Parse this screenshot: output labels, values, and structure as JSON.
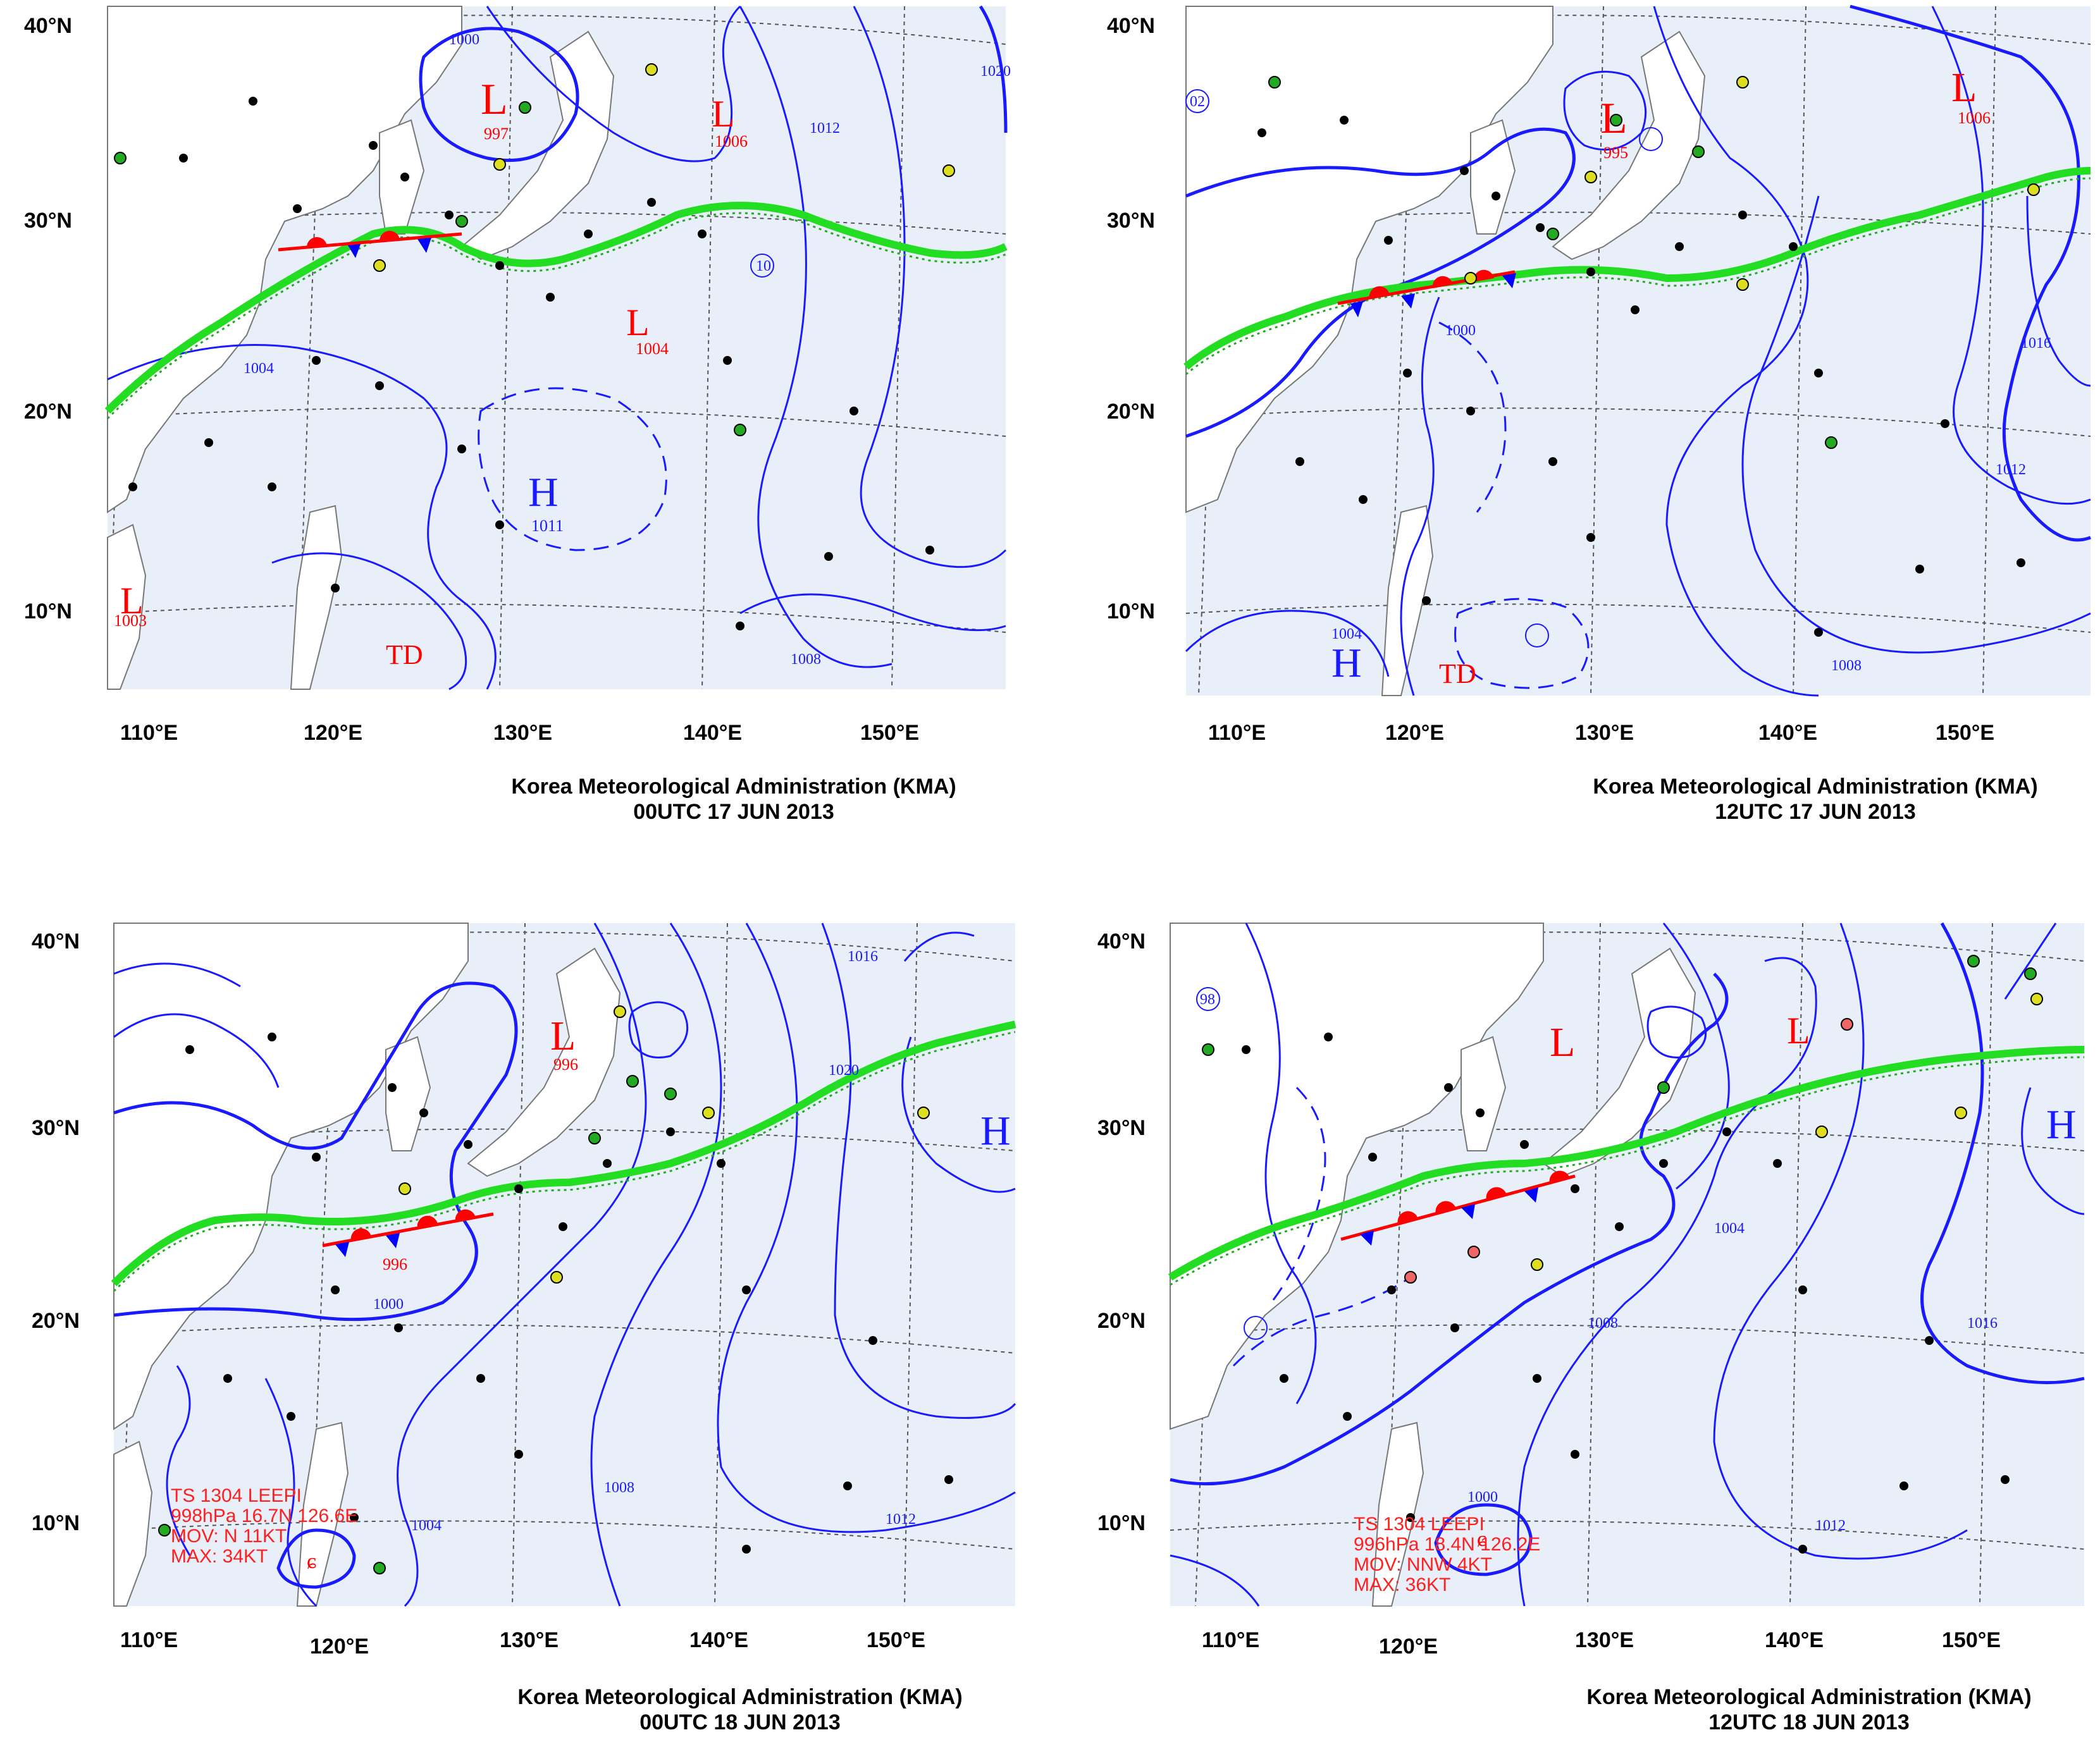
{
  "agency": "Korea Meteorological Administration (KMA)",
  "lat_labels": [
    "40°N",
    "30°N",
    "20°N",
    "10°N"
  ],
  "lon_labels": [
    "110°E",
    "120°E",
    "130°E",
    "140°E",
    "150°E"
  ],
  "colors": {
    "ocean": "#e8eff8",
    "isobar": "#1a1aff",
    "front_stationary": "#22dd22",
    "front_warm": "#ff0000",
    "front_cold": "#0000ff",
    "label_red": "#ff0000"
  },
  "panels": [
    {
      "time": "00UTC 17 JUN 2013",
      "systems": [
        {
          "type": "L",
          "value": "997"
        },
        {
          "type": "L",
          "value": "1006"
        },
        {
          "type": "L",
          "value": "1004"
        },
        {
          "type": "L",
          "value": "1003"
        },
        {
          "type": "H",
          "value": "1011"
        },
        {
          "type": "TD",
          "value": ""
        }
      ],
      "isobar_labels": [
        "1000",
        "1004",
        "1008",
        "1012",
        "1020",
        "10"
      ]
    },
    {
      "time": "12UTC 17 JUN 2013",
      "systems": [
        {
          "type": "L",
          "value": "995"
        },
        {
          "type": "L",
          "value": "1006"
        },
        {
          "type": "H",
          "value": ""
        },
        {
          "type": "TD",
          "value": ""
        }
      ],
      "isobar_labels": [
        "1000",
        "1004",
        "1008",
        "1012",
        "1016",
        "02"
      ]
    },
    {
      "time": "00UTC 18 JUN 2013",
      "systems": [
        {
          "type": "L",
          "value": "996"
        },
        {
          "type": "L",
          "value": "996"
        },
        {
          "type": "H",
          "value": ""
        }
      ],
      "isobar_labels": [
        "1000",
        "1004",
        "1008",
        "1012",
        "1016",
        "1020"
      ],
      "storm": {
        "line1": "TS 1304 LEEPI",
        "line2": "998hPa 16.7N 126.6E",
        "line3": "MOV: N 11KT",
        "line4": "MAX: 34KT"
      }
    },
    {
      "time": "12UTC 18 JUN 2013",
      "systems": [
        {
          "type": "L",
          "value": ""
        },
        {
          "type": "L",
          "value": ""
        },
        {
          "type": "H",
          "value": ""
        }
      ],
      "isobar_labels": [
        "1000",
        "1004",
        "1008",
        "1012",
        "1016",
        "98"
      ],
      "storm": {
        "line1": "TS 1304 LEEPI",
        "line2": "996hPa 18.4N 126.2E",
        "line3": "MOV: NNW 4KT",
        "line4": "MAX: 36KT"
      }
    }
  ]
}
